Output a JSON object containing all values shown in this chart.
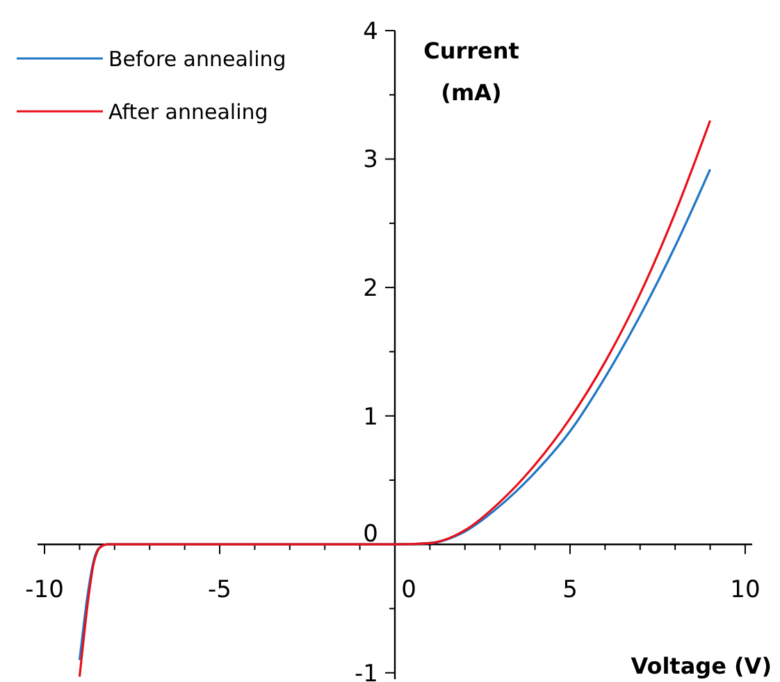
{
  "chart_data": {
    "type": "line",
    "xlabel": "Voltage (V)",
    "ylabel": "Current\n(mA)",
    "xlim": [
      -10.2,
      10.2
    ],
    "ylim": [
      -1.05,
      4
    ],
    "xticks": [
      -10,
      {
        "value": -9,
        "label": null
      },
      {
        "value": -8,
        "label": null
      },
      {
        "value": -7,
        "label": null
      },
      {
        "value": -6,
        "label": null
      },
      -5,
      {
        "value": -4,
        "label": null
      },
      {
        "value": -3,
        "label": null
      },
      {
        "value": -2,
        "label": null
      },
      {
        "value": -1,
        "label": null
      },
      0,
      {
        "value": 1,
        "label": null
      },
      {
        "value": 2,
        "label": null
      },
      {
        "value": 3,
        "label": null
      },
      {
        "value": 4,
        "label": null
      },
      5,
      {
        "value": 6,
        "label": null
      },
      {
        "value": 7,
        "label": null
      },
      {
        "value": 8,
        "label": null
      },
      {
        "value": 9,
        "label": null
      },
      10
    ],
    "yticks": [
      -1,
      {
        "value": -0.5,
        "label": null
      },
      0,
      {
        "value": 0.5,
        "label": null
      },
      1,
      {
        "value": 1.5,
        "label": null
      },
      2,
      {
        "value": 2.5,
        "label": null
      },
      3,
      {
        "value": 3.5,
        "label": null
      },
      4
    ],
    "grid": false,
    "legend": "top left",
    "marker": "none",
    "line_style": "solid",
    "series": [
      {
        "name": "Before annealing",
        "color": "#1f77c4",
        "x": [
          -9,
          -8.9,
          -8.8,
          -8.7,
          -8.6,
          -8.5,
          -8.4,
          -8.2,
          -8,
          -5,
          0,
          1,
          2,
          3,
          4,
          5,
          6,
          7,
          8,
          9
        ],
        "values": [
          -0.9,
          -0.67,
          -0.45,
          -0.27,
          -0.13,
          -0.05,
          -0.02,
          0,
          0,
          0,
          0,
          0.01,
          0.1,
          0.3,
          0.56,
          0.88,
          1.3,
          1.78,
          2.32,
          2.92
        ]
      },
      {
        "name": "After annealing",
        "color": "#e8101a",
        "x": [
          -9,
          -8.9,
          -8.8,
          -8.7,
          -8.6,
          -8.5,
          -8.4,
          -8.2,
          -8,
          -5,
          0,
          1,
          2,
          3,
          4,
          5,
          6,
          7,
          8,
          9
        ],
        "values": [
          -1.03,
          -0.78,
          -0.53,
          -0.32,
          -0.15,
          -0.06,
          -0.02,
          0,
          0,
          0,
          0,
          0.01,
          0.11,
          0.33,
          0.62,
          0.98,
          1.42,
          1.95,
          2.58,
          3.3
        ]
      }
    ]
  }
}
